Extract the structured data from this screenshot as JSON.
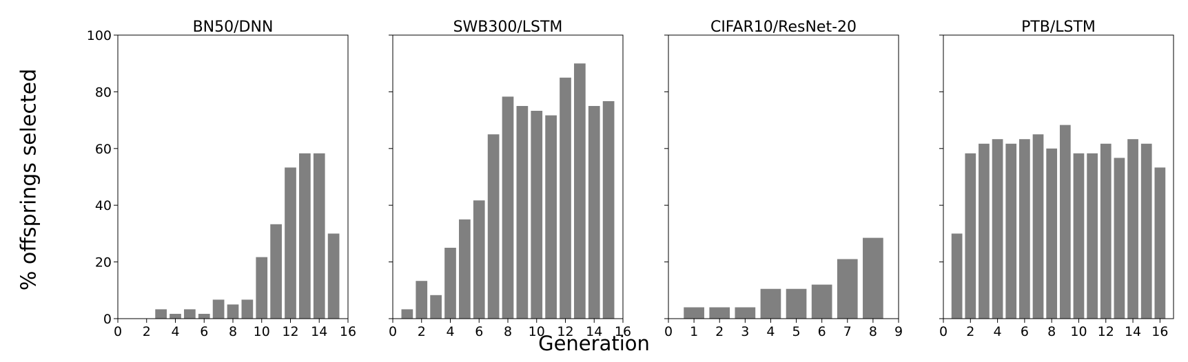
{
  "figure": {
    "ylabel": "% offsprings selected",
    "xlabel": "Generation"
  },
  "chart_data": [
    {
      "type": "bar",
      "title": "BN50/DNN",
      "x": [
        3,
        4,
        5,
        6,
        7,
        8,
        9,
        10,
        11,
        12,
        13,
        14,
        15
      ],
      "values": [
        3.3,
        1.7,
        3.3,
        1.7,
        6.7,
        5.0,
        6.7,
        21.7,
        33.3,
        53.3,
        58.3,
        58.3,
        30.0
      ],
      "xlim": [
        0,
        16
      ],
      "ylim": [
        0,
        100
      ],
      "xticks": [
        "0",
        "2",
        "4",
        "6",
        "8",
        "10",
        "12",
        "14",
        "16"
      ],
      "yticks": [
        "0",
        "20",
        "40",
        "60",
        "80",
        "100"
      ],
      "bar_color": "#808080"
    },
    {
      "type": "bar",
      "title": "SWB300/LSTM",
      "x": [
        1,
        2,
        3,
        4,
        5,
        6,
        7,
        8,
        9,
        10,
        11,
        12,
        13,
        14,
        15
      ],
      "values": [
        3.3,
        13.3,
        8.3,
        25.0,
        35.0,
        41.7,
        65.0,
        78.3,
        75.0,
        73.3,
        71.7,
        85.0,
        90.0,
        75.0,
        76.7
      ],
      "xlim": [
        0,
        16
      ],
      "ylim": [
        0,
        100
      ],
      "xticks": [
        "0",
        "2",
        "4",
        "6",
        "8",
        "10",
        "12",
        "14",
        "16"
      ],
      "bar_color": "#808080"
    },
    {
      "type": "bar",
      "title": "CIFAR10/ResNet-20",
      "x": [
        1,
        2,
        3,
        4,
        5,
        6,
        7,
        8
      ],
      "values": [
        4.0,
        4.0,
        4.0,
        10.5,
        10.5,
        12.0,
        21.0,
        28.5
      ],
      "xlim": [
        0,
        9
      ],
      "ylim": [
        0,
        100
      ],
      "xticks": [
        "0",
        "1",
        "2",
        "3",
        "4",
        "5",
        "6",
        "7",
        "8",
        "9"
      ],
      "bar_color": "#808080"
    },
    {
      "type": "bar",
      "title": "PTB/LSTM",
      "x": [
        1,
        2,
        3,
        4,
        5,
        6,
        7,
        8,
        9,
        10,
        11,
        12,
        13,
        14,
        15,
        16
      ],
      "values": [
        30.0,
        58.3,
        61.7,
        63.3,
        61.7,
        63.3,
        65.0,
        60.0,
        68.3,
        58.3,
        58.3,
        61.7,
        56.7,
        63.3,
        61.7,
        53.3
      ],
      "xlim": [
        0,
        17
      ],
      "ylim": [
        0,
        100
      ],
      "xticks": [
        "0",
        "2",
        "4",
        "6",
        "8",
        "10",
        "12",
        "14",
        "16"
      ],
      "bar_color": "#808080"
    }
  ]
}
